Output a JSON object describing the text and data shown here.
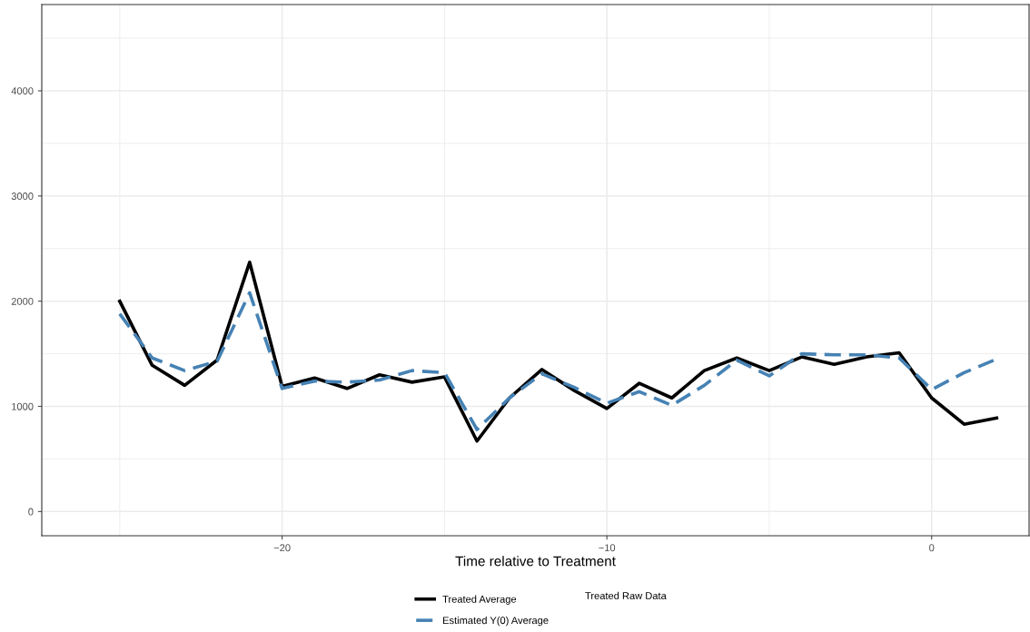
{
  "chart_data": {
    "type": "line",
    "xlabel": "Time relative to Treatment",
    "x": [
      -25,
      -24,
      -23,
      -22,
      -21,
      -20,
      -19,
      -18,
      -17,
      -16,
      -15,
      -14,
      -13,
      -12,
      -11,
      -10,
      -9,
      -8,
      -7,
      -6,
      -5,
      -4,
      -3,
      -2,
      -1,
      0,
      1,
      2
    ],
    "series": [
      {
        "name": "Treated Average",
        "color": "#000000",
        "line_style": "solid",
        "values": [
          2000,
          1390,
          1200,
          1440,
          2370,
          1190,
          1270,
          1170,
          1300,
          1230,
          1280,
          670,
          1080,
          1350,
          1150,
          980,
          1220,
          1080,
          1340,
          1460,
          1340,
          1470,
          1400,
          1470,
          1510,
          1080,
          830,
          890
        ]
      },
      {
        "name": "Estimated Y(0) Average",
        "color": "#4682b4",
        "line_style": "dashed",
        "values": [
          1880,
          1460,
          1340,
          1430,
          2080,
          1170,
          1240,
          1230,
          1250,
          1340,
          1320,
          780,
          1080,
          1310,
          1180,
          1030,
          1140,
          1010,
          1200,
          1440,
          1290,
          1500,
          1490,
          1490,
          1460,
          1160,
          1320,
          1450
        ]
      }
    ],
    "annotations": [
      "Treated Raw Data"
    ],
    "xlim": [
      -27.4,
      3
    ],
    "ylim": [
      -230,
      4820
    ],
    "xticks": [
      {
        "value": -20,
        "label": "−20"
      },
      {
        "value": -10,
        "label": "−10"
      },
      0
    ],
    "yticks": [
      0,
      1000,
      2000,
      3000,
      4000
    ],
    "grid": true,
    "legend": "bottom"
  }
}
